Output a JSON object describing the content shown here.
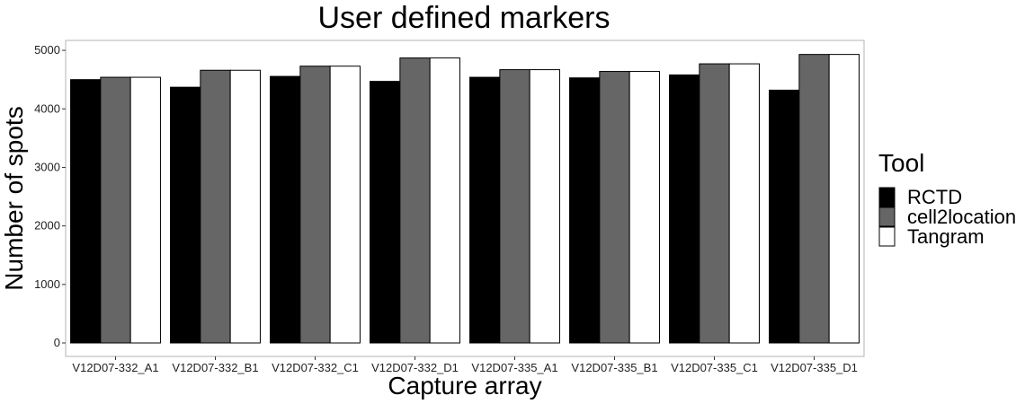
{
  "chart_data": {
    "type": "bar",
    "title": "User defined markers",
    "xlabel": "Capture array",
    "ylabel": "Number of spots",
    "categories": [
      "V12D07-332_A1",
      "V12D07-332_B1",
      "V12D07-332_C1",
      "V12D07-332_D1",
      "V12D07-335_A1",
      "V12D07-335_B1",
      "V12D07-335_C1",
      "V12D07-335_D1"
    ],
    "series": [
      {
        "name": "RCTD",
        "color": "#000000",
        "values": [
          4500,
          4370,
          4555,
          4470,
          4540,
          4530,
          4580,
          4320
        ]
      },
      {
        "name": "cell2location",
        "color": "#666666",
        "values": [
          4540,
          4660,
          4730,
          4870,
          4670,
          4640,
          4770,
          4930
        ]
      },
      {
        "name": "Tangram",
        "color": "#ffffff",
        "values": [
          4540,
          4660,
          4730,
          4870,
          4670,
          4640,
          4770,
          4930
        ]
      }
    ],
    "yticks": [
      0,
      1000,
      2000,
      3000,
      4000,
      5000
    ],
    "ylim": [
      -230,
      5170
    ],
    "legend": {
      "title": "Tool",
      "position": "right"
    },
    "grid": false
  }
}
